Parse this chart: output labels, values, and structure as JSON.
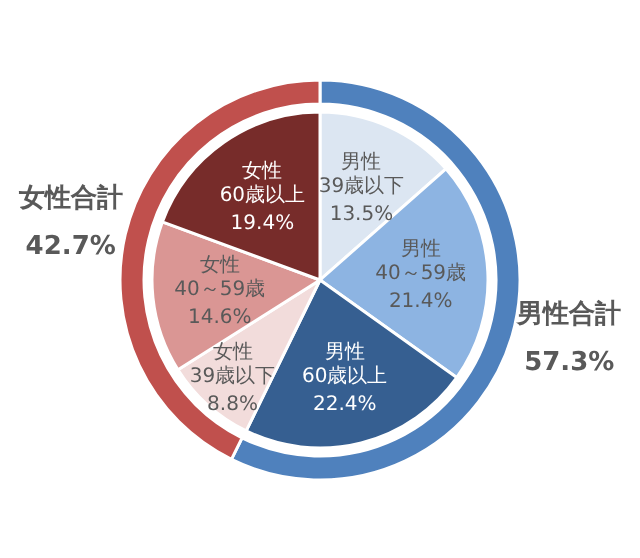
{
  "chart_data": [
    {
      "type": "donut",
      "categories": [
        "男性合計",
        "女性合計"
      ],
      "values": [
        57.3,
        42.7
      ],
      "colors": [
        "#4f81bd",
        "#c0504d"
      ],
      "value_labels": [
        "57.3%",
        "42.7%"
      ]
    },
    {
      "type": "pie",
      "categories": [
        "男性39歳以下",
        "男性40～59歳",
        "男性60歳以上",
        "女性39歳以下",
        "女性40～59歳",
        "女性60歳以上"
      ],
      "values": [
        13.5,
        21.4,
        22.4,
        8.8,
        14.6,
        19.4
      ],
      "colors": [
        "#dce6f2",
        "#8db4e2",
        "#365f91",
        "#f2dcdb",
        "#da9694",
        "#772c2a"
      ],
      "value_labels": [
        "13.5%",
        "21.4%",
        "22.4%",
        "8.8%",
        "14.6%",
        "19.4%"
      ]
    }
  ]
}
